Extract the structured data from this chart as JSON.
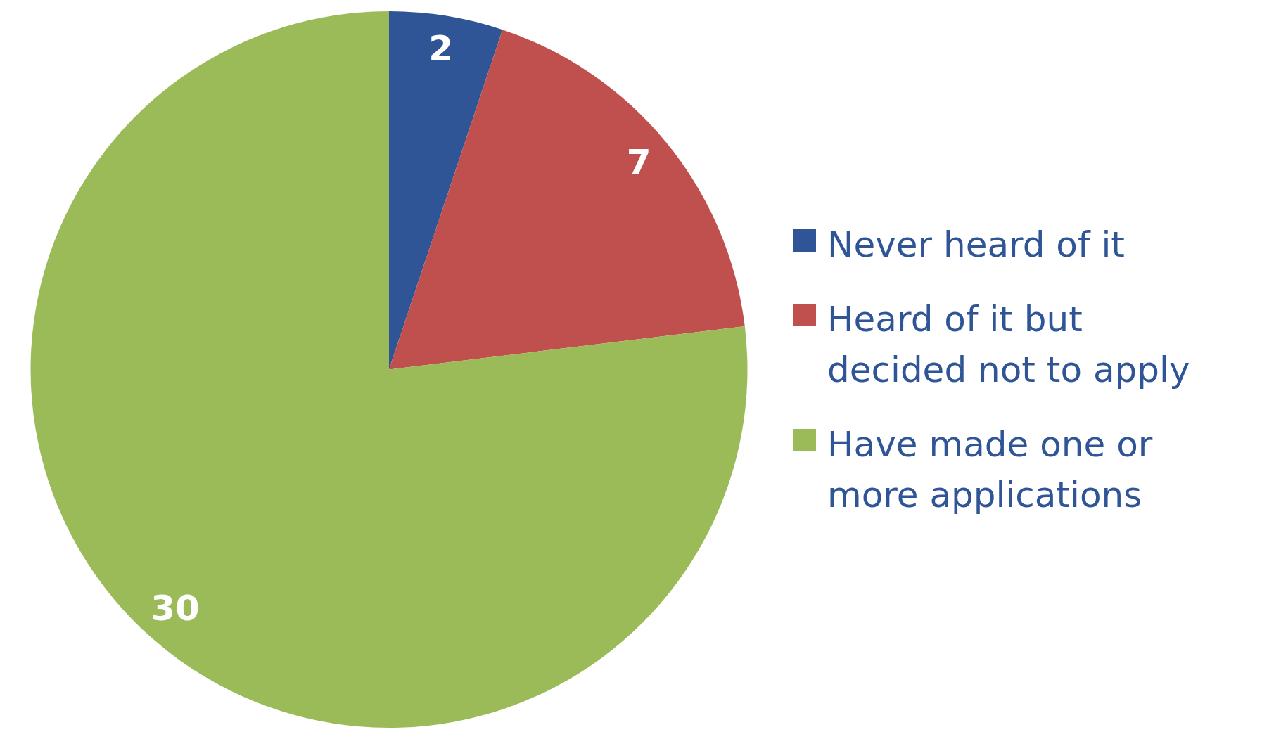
{
  "chart_data": {
    "type": "pie",
    "categories": [
      "Never heard of it",
      "Heard of it but decided not to apply",
      "Have made one or more applications"
    ],
    "values": [
      2,
      7,
      30
    ],
    "colors": [
      "#2f5597",
      "#c0504d",
      "#9bbb59"
    ],
    "data_labels": true,
    "legend": "right"
  }
}
